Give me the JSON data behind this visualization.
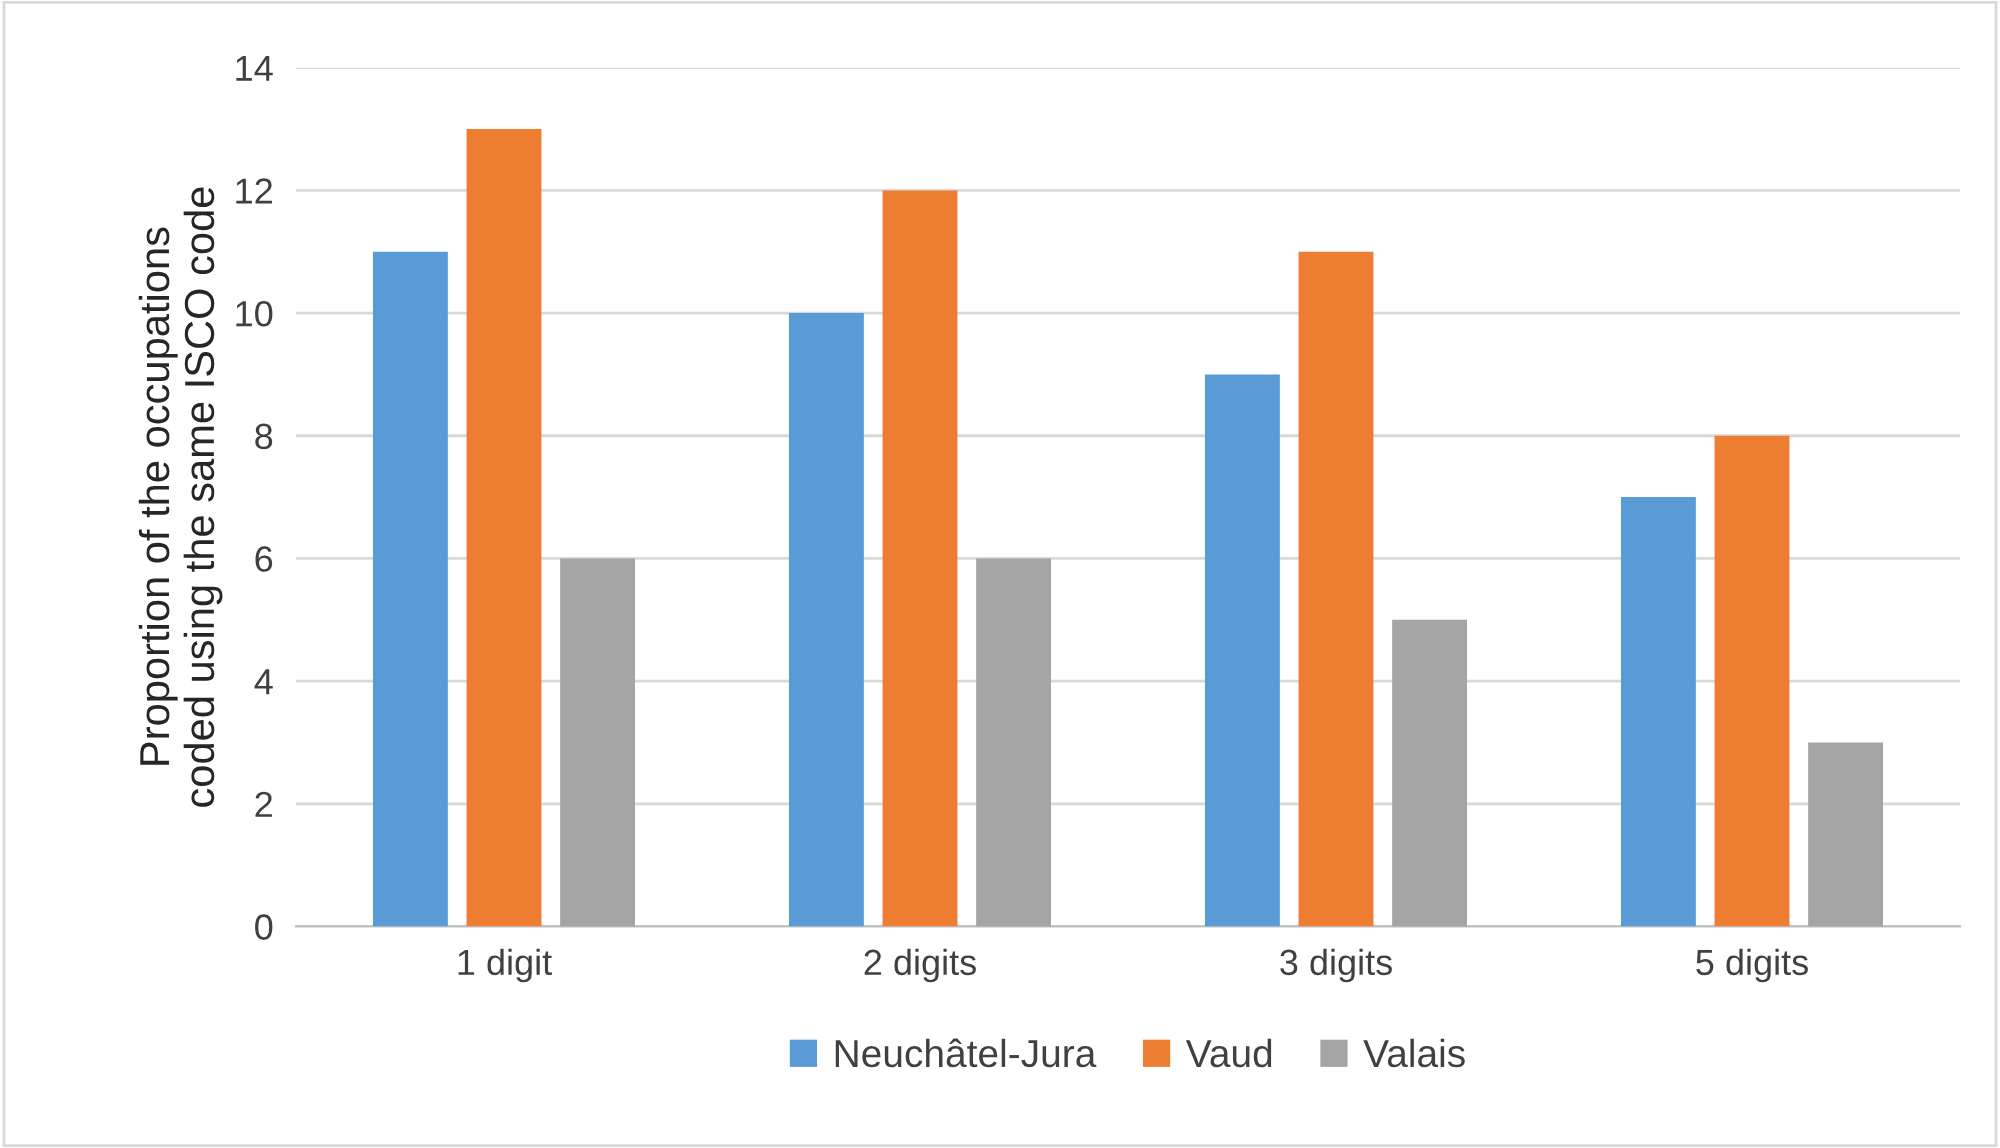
{
  "chart_data": {
    "type": "bar",
    "ylabel": "Proportion of the occupations\ncoded using the same ISCO code",
    "categories": [
      "1 digit",
      "2 digits",
      "3 digits",
      "5 digits"
    ],
    "series": [
      {
        "name": "Neuchâtel-Jura",
        "color": "#5b9bd5",
        "values": [
          11,
          10,
          9,
          7
        ]
      },
      {
        "name": "Vaud",
        "color": "#ed7d31",
        "values": [
          13,
          12,
          11,
          8
        ]
      },
      {
        "name": "Valais",
        "color": "#a5a5a5",
        "values": [
          6,
          6,
          5,
          3
        ]
      }
    ],
    "ylim": [
      0,
      14
    ],
    "yticks": [
      0,
      2,
      4,
      6,
      8,
      10,
      12,
      14
    ],
    "grid": "y",
    "legend": "bottom"
  }
}
